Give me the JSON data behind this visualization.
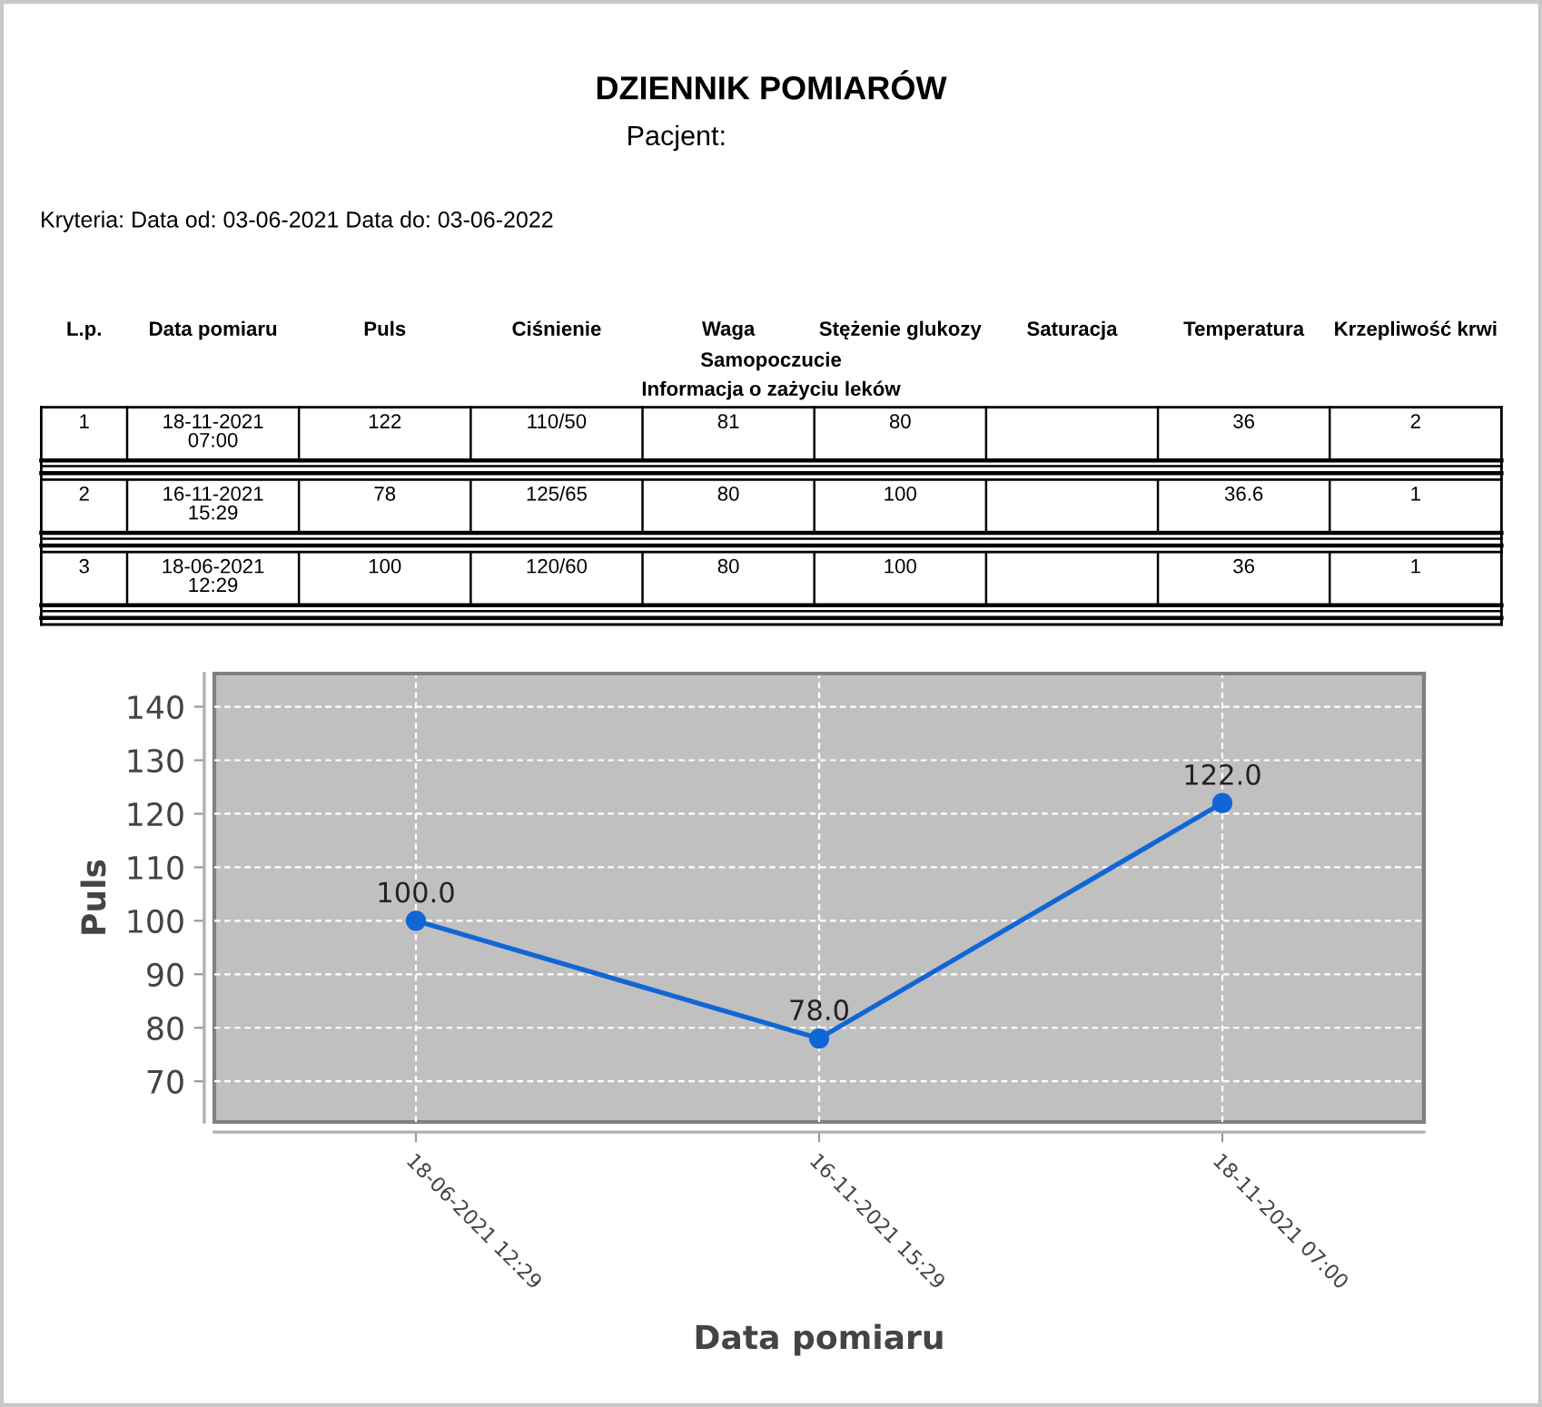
{
  "chart_data": [
    {
      "type": "other",
      "title": "DZIENNIK POMIARÓW",
      "subtitle": "Pacjent:",
      "annotations": [
        "Kryteria: Data od: 03-06-2021 Data do: 03-06-2022",
        "Samopoczucie",
        "Informacja o zażyciu leków"
      ],
      "categories": [
        "L.p.",
        "Data pomiaru",
        "Puls",
        "Ciśnienie",
        "Waga",
        "Stężenie glukozy",
        "Saturacja",
        "Temperatura",
        "Krzepliwość krwi"
      ],
      "cell_labels": [
        [
          "1",
          "18-11-2021\n07:00",
          "122",
          "110/50",
          "81",
          "80",
          null,
          "36",
          "2"
        ],
        [
          "2",
          "16-11-2021\n15:29",
          "78",
          "125/65",
          "80",
          "100",
          null,
          "36.6",
          "1"
        ],
        [
          "3",
          "18-06-2021\n12:29",
          "100",
          "120/60",
          "80",
          "100",
          null,
          "36",
          "1"
        ]
      ]
    },
    {
      "type": "line",
      "categories": [
        "18-06-2021 12:29",
        "16-11-2021 15:29",
        "18-11-2021 07:00"
      ],
      "values": [
        100,
        78,
        122
      ],
      "value_labels": [
        "100.0",
        "78.0",
        "122.0"
      ],
      "color": "#1166d6",
      "xlabel": "Data pomiaru",
      "ylabel": "Puls",
      "ylim": [
        62.4,
        146.2
      ],
      "yticks": [
        70,
        80,
        90,
        100,
        110,
        120,
        130,
        140
      ],
      "grid": true,
      "marker": "circle",
      "line_style": "solid"
    }
  ]
}
